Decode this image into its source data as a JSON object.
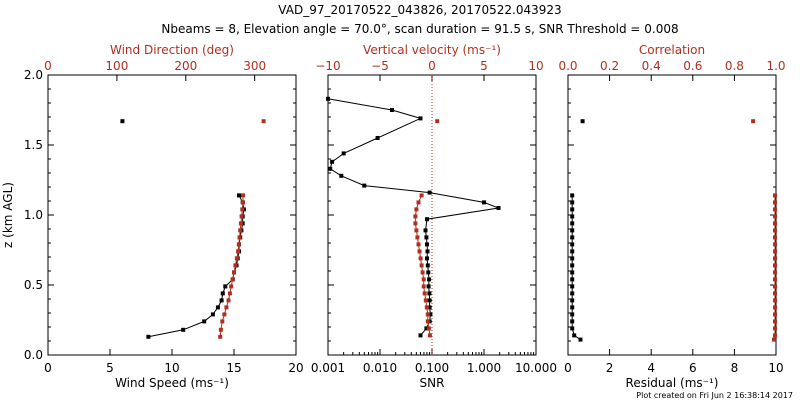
{
  "title_line1": "VAD_97_20170522_043826, 20170522.043923",
  "title_line2": "Nbeams = 8, Elevation angle = 70.0°, scan duration = 91.5 s, SNR Threshold = 0.008",
  "footer": "Plot created on Fri Jun  2 16:38:14 2017",
  "colors": {
    "black": "#000000",
    "red": "#b0301f"
  },
  "chart_data": [
    {
      "type": "scatter",
      "panel": "wind",
      "ylabel": "z (km AGL)",
      "ylim": [
        0,
        2.0
      ],
      "y_ticks": [
        "0.0",
        "0.5",
        "1.0",
        "1.5",
        "2.0"
      ],
      "bottom_axis": {
        "label": "Wind Speed (ms⁻¹)",
        "range": [
          0,
          20
        ],
        "ticks": [
          "0",
          "5",
          "10",
          "15",
          "20"
        ],
        "color": "#000000"
      },
      "top_axis": {
        "label": "Wind Direction (deg)",
        "range": [
          0,
          360
        ],
        "ticks": [
          "0",
          "100",
          "200",
          "300"
        ],
        "tick_values": [
          0,
          100,
          200,
          300
        ],
        "color": "#b0301f"
      },
      "series": [
        {
          "axis": "bottom",
          "color": "#000000",
          "connected": true,
          "points": [
            [
              8.1,
              0.13
            ],
            [
              10.9,
              0.18
            ],
            [
              12.6,
              0.24
            ],
            [
              13.3,
              0.29
            ],
            [
              13.7,
              0.34
            ],
            [
              14.0,
              0.39
            ],
            [
              14.1,
              0.44
            ],
            [
              14.3,
              0.49
            ],
            [
              14.9,
              0.54
            ],
            [
              15.0,
              0.59
            ],
            [
              15.2,
              0.64
            ],
            [
              15.3,
              0.69
            ],
            [
              15.4,
              0.74
            ],
            [
              15.4,
              0.79
            ],
            [
              15.5,
              0.84
            ],
            [
              15.6,
              0.89
            ],
            [
              15.7,
              0.94
            ],
            [
              15.7,
              0.99
            ],
            [
              15.8,
              1.04
            ],
            [
              15.7,
              1.09
            ],
            [
              15.4,
              1.14
            ]
          ]
        },
        {
          "axis": "bottom",
          "color": "#000000",
          "connected": false,
          "points": [
            [
              6.0,
              1.67
            ]
          ]
        },
        {
          "axis": "top",
          "color": "#b0301f",
          "connected": true,
          "points": [
            [
              250,
              0.13
            ],
            [
              251,
              0.18
            ],
            [
              253,
              0.24
            ],
            [
              256,
              0.29
            ],
            [
              259,
              0.34
            ],
            [
              262,
              0.39
            ],
            [
              264,
              0.44
            ],
            [
              266,
              0.49
            ],
            [
              268,
              0.54
            ],
            [
              270,
              0.59
            ],
            [
              272,
              0.64
            ],
            [
              274,
              0.69
            ],
            [
              276,
              0.74
            ],
            [
              277,
              0.79
            ],
            [
              278,
              0.84
            ],
            [
              279,
              0.89
            ],
            [
              280,
              0.94
            ],
            [
              281,
              0.99
            ],
            [
              282,
              1.04
            ],
            [
              283,
              1.09
            ],
            [
              283,
              1.14
            ]
          ]
        },
        {
          "axis": "top",
          "color": "#b0301f",
          "connected": false,
          "points": [
            [
              313,
              1.67
            ]
          ]
        }
      ]
    },
    {
      "type": "scatter",
      "panel": "vertical",
      "ylim": [
        0,
        2.0
      ],
      "bottom_axis": {
        "label": "SNR",
        "scale": "log",
        "range": [
          0.001,
          10
        ],
        "ticks": [
          "0.001",
          "0.010",
          "0.100",
          "1.000",
          "10.000"
        ],
        "tick_values": [
          0.001,
          0.01,
          0.1,
          1,
          10
        ],
        "color": "#000000"
      },
      "top_axis": {
        "label": "Vertical velocity (ms⁻¹)",
        "range": [
          -10,
          10
        ],
        "ticks": [
          "−10",
          "−5",
          "0",
          "5",
          "10"
        ],
        "tick_values": [
          -10,
          -5,
          0,
          5,
          10
        ],
        "color": "#b0301f"
      },
      "zero_line": {
        "axis": "top",
        "value": 0,
        "color": "#b0301f",
        "style": "dotted"
      },
      "series": [
        {
          "axis": "bottom",
          "color": "#000000",
          "connected": true,
          "points": [
            [
              0.001,
              1.83
            ],
            [
              0.017,
              1.75
            ],
            [
              0.06,
              1.69
            ],
            [
              0.009,
              1.55
            ],
            [
              0.002,
              1.44
            ],
            [
              0.0012,
              1.38
            ],
            [
              0.0011,
              1.33
            ],
            [
              0.0018,
              1.28
            ],
            [
              0.005,
              1.21
            ],
            [
              0.09,
              1.16
            ],
            [
              1.0,
              1.09
            ],
            [
              1.9,
              1.05
            ],
            [
              0.08,
              0.97
            ],
            [
              0.075,
              0.89
            ],
            [
              0.078,
              0.84
            ],
            [
              0.08,
              0.79
            ],
            [
              0.082,
              0.74
            ],
            [
              0.08,
              0.69
            ],
            [
              0.083,
              0.64
            ],
            [
              0.085,
              0.59
            ],
            [
              0.088,
              0.54
            ],
            [
              0.086,
              0.49
            ],
            [
              0.089,
              0.44
            ],
            [
              0.09,
              0.39
            ],
            [
              0.09,
              0.34
            ],
            [
              0.093,
              0.29
            ],
            [
              0.09,
              0.24
            ],
            [
              0.078,
              0.19
            ],
            [
              0.06,
              0.14
            ]
          ]
        },
        {
          "axis": "top",
          "color": "#b0301f",
          "connected": true,
          "points": [
            [
              -1.0,
              1.14
            ],
            [
              -1.3,
              1.09
            ],
            [
              -1.5,
              1.04
            ],
            [
              -1.6,
              0.99
            ],
            [
              -1.6,
              0.94
            ],
            [
              -1.5,
              0.89
            ],
            [
              -1.4,
              0.84
            ],
            [
              -1.3,
              0.79
            ],
            [
              -1.2,
              0.74
            ],
            [
              -1.1,
              0.69
            ],
            [
              -1.0,
              0.64
            ],
            [
              -0.9,
              0.59
            ],
            [
              -0.8,
              0.54
            ],
            [
              -0.8,
              0.49
            ],
            [
              -0.7,
              0.44
            ],
            [
              -0.6,
              0.39
            ],
            [
              -0.5,
              0.34
            ],
            [
              -0.4,
              0.29
            ],
            [
              -0.4,
              0.24
            ],
            [
              -0.3,
              0.19
            ],
            [
              -0.2,
              0.14
            ]
          ]
        },
        {
          "axis": "top",
          "color": "#b0301f",
          "connected": false,
          "points": [
            [
              0.5,
              1.67
            ]
          ]
        }
      ]
    },
    {
      "type": "scatter",
      "panel": "residual",
      "ylim": [
        0,
        2.0
      ],
      "bottom_axis": {
        "label": "Residual (ms⁻¹)",
        "range": [
          0,
          10
        ],
        "ticks": [
          "0",
          "2",
          "4",
          "6",
          "8",
          "10"
        ],
        "color": "#000000"
      },
      "top_axis": {
        "label": "Correlation",
        "range": [
          0,
          1.0
        ],
        "ticks": [
          "0.0",
          "0.2",
          "0.4",
          "0.6",
          "0.8",
          "1.0"
        ],
        "tick_values": [
          0,
          0.2,
          0.4,
          0.6,
          0.8,
          1.0
        ],
        "color": "#b0301f"
      },
      "series": [
        {
          "axis": "bottom",
          "color": "#000000",
          "connected": true,
          "points": [
            [
              0.2,
              1.14
            ],
            [
              0.2,
              1.09
            ],
            [
              0.2,
              1.04
            ],
            [
              0.2,
              0.99
            ],
            [
              0.2,
              0.94
            ],
            [
              0.2,
              0.89
            ],
            [
              0.2,
              0.84
            ],
            [
              0.2,
              0.79
            ],
            [
              0.2,
              0.74
            ],
            [
              0.2,
              0.69
            ],
            [
              0.2,
              0.64
            ],
            [
              0.2,
              0.59
            ],
            [
              0.2,
              0.54
            ],
            [
              0.2,
              0.49
            ],
            [
              0.2,
              0.44
            ],
            [
              0.2,
              0.39
            ],
            [
              0.2,
              0.34
            ],
            [
              0.2,
              0.29
            ],
            [
              0.2,
              0.24
            ],
            [
              0.2,
              0.19
            ],
            [
              0.3,
              0.14
            ],
            [
              0.6,
              0.11
            ]
          ]
        },
        {
          "axis": "bottom",
          "color": "#000000",
          "connected": false,
          "points": [
            [
              0.7,
              1.67
            ]
          ]
        },
        {
          "axis": "top",
          "color": "#b0301f",
          "connected": true,
          "points": [
            [
              0.995,
              1.14
            ],
            [
              0.995,
              1.09
            ],
            [
              0.995,
              1.04
            ],
            [
              0.995,
              0.99
            ],
            [
              0.995,
              0.94
            ],
            [
              0.995,
              0.89
            ],
            [
              0.995,
              0.84
            ],
            [
              0.995,
              0.79
            ],
            [
              0.995,
              0.74
            ],
            [
              0.995,
              0.69
            ],
            [
              0.995,
              0.64
            ],
            [
              0.995,
              0.59
            ],
            [
              0.995,
              0.54
            ],
            [
              0.995,
              0.49
            ],
            [
              0.995,
              0.44
            ],
            [
              0.995,
              0.39
            ],
            [
              0.995,
              0.34
            ],
            [
              0.995,
              0.29
            ],
            [
              0.995,
              0.24
            ],
            [
              0.995,
              0.19
            ],
            [
              0.995,
              0.14
            ],
            [
              0.99,
              0.11
            ]
          ]
        },
        {
          "axis": "top",
          "color": "#b0301f",
          "connected": false,
          "points": [
            [
              0.89,
              1.67
            ]
          ]
        }
      ]
    }
  ]
}
